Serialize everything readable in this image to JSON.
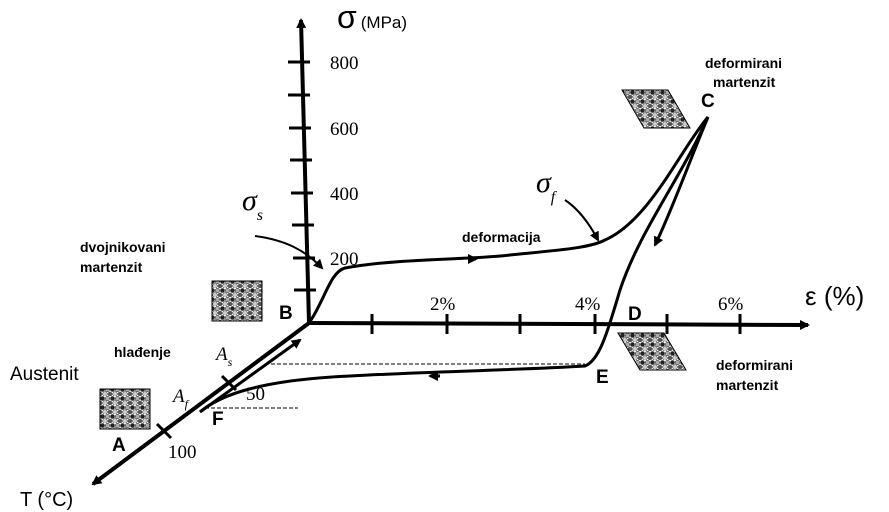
{
  "axes": {
    "stress": {
      "symbol": "σ",
      "unit": "(MPa)",
      "ticks": [
        "800",
        "600",
        "400",
        "200"
      ]
    },
    "strain": {
      "label": "ε (%)",
      "ticks": [
        "2%",
        "4%",
        "6%"
      ]
    },
    "temperature": {
      "label": "T (°C)",
      "ticks": [
        "50",
        "100"
      ]
    }
  },
  "points": {
    "A": "A",
    "B": "B",
    "C": "C",
    "D": "D",
    "E": "E",
    "F": "F"
  },
  "symbols": {
    "sigma_s": {
      "symbol": "σ",
      "sub": "s"
    },
    "sigma_f": {
      "symbol": "σ",
      "sub": "f"
    },
    "A_s": {
      "symbol": "A",
      "sub": "s"
    },
    "A_f": {
      "symbol": "A",
      "sub": "f"
    }
  },
  "labels": {
    "deformation": "deformacija",
    "twinned": [
      "dvojnikovani",
      "martenzit"
    ],
    "deformed_top": [
      "deformirani",
      "martenzit"
    ],
    "deformed_bottom": [
      "deformirani",
      "martenzit"
    ],
    "cooling": "hlađenje",
    "austenite": "Austenit"
  }
}
